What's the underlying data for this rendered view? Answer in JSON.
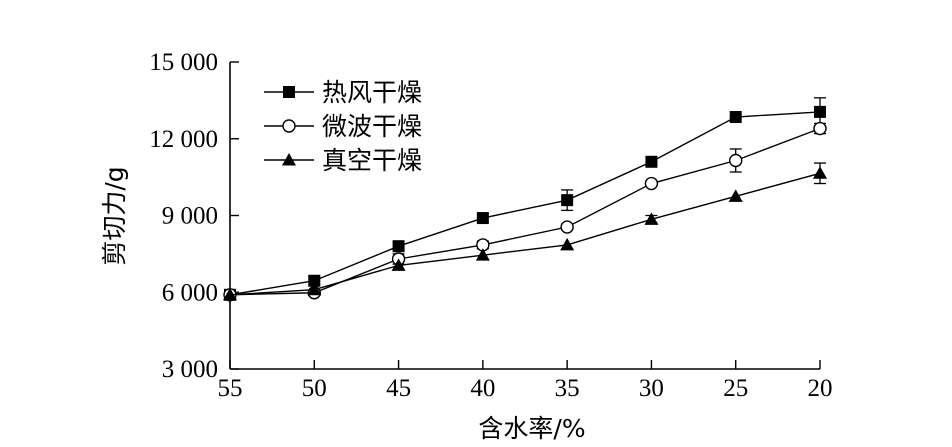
{
  "chart_data": {
    "type": "line",
    "title": "",
    "xlabel": "含水率/%",
    "ylabel": "剪切力/g",
    "x": [
      55,
      50,
      45,
      40,
      35,
      30,
      25,
      20
    ],
    "x_tick_labels": [
      "55",
      "50",
      "45",
      "40",
      "35",
      "30",
      "25",
      "20"
    ],
    "xlim": [
      55,
      20
    ],
    "x_reversed": true,
    "ylim": [
      3000,
      15000
    ],
    "y_ticks": [
      3000,
      6000,
      9000,
      12000,
      15000
    ],
    "y_tick_labels": [
      "3 000",
      "6 000",
      "9 000",
      "12 000",
      "15 000"
    ],
    "grid": false,
    "legend_position": "top-left",
    "series": [
      {
        "name": "热风干燥",
        "marker": "filled-square",
        "values": [
          5900,
          6450,
          7800,
          8900,
          9600,
          11100,
          12850,
          13050
        ],
        "errors": [
          0,
          150,
          0,
          0,
          400,
          0,
          0,
          550
        ]
      },
      {
        "name": "微波干燥",
        "marker": "open-circle",
        "values": [
          5900,
          5980,
          7300,
          7850,
          8550,
          10250,
          11150,
          12400
        ],
        "errors": [
          0,
          100,
          200,
          150,
          100,
          100,
          450,
          200
        ]
      },
      {
        "name": "真空干燥",
        "marker": "filled-triangle",
        "values": [
          5900,
          6100,
          7050,
          7450,
          7850,
          8850,
          9750,
          10650
        ],
        "errors": [
          0,
          0,
          0,
          0,
          0,
          150,
          0,
          400
        ]
      }
    ]
  }
}
